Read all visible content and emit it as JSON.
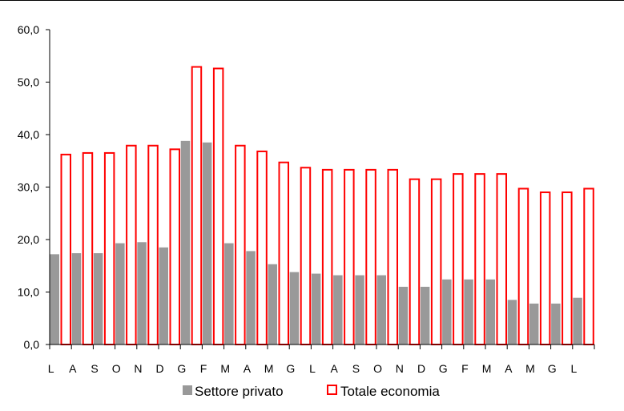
{
  "chart_data": {
    "type": "bar",
    "title": "",
    "xlabel": "",
    "ylabel": "",
    "categories": [
      "L",
      "A",
      "S",
      "O",
      "N",
      "D",
      "G",
      "F",
      "M",
      "A",
      "M",
      "G",
      "L",
      "A",
      "S",
      "O",
      "N",
      "D",
      "G",
      "F",
      "M",
      "A",
      "M",
      "G",
      "L"
    ],
    "ylim": [
      0,
      60
    ],
    "yticks": [
      "0,0",
      "10,0",
      "20,0",
      "30,0",
      "40,0",
      "50,0",
      "60,0"
    ],
    "series": [
      {
        "name": "Settore privato",
        "color": "#999999",
        "style": "filled",
        "values": [
          17.2,
          17.4,
          17.4,
          19.3,
          19.5,
          18.5,
          38.8,
          38.5,
          19.3,
          17.8,
          15.3,
          13.8,
          13.5,
          13.2,
          13.2,
          13.2,
          11.0,
          11.0,
          12.4,
          12.4,
          12.4,
          8.5,
          7.8,
          7.8,
          8.9
        ]
      },
      {
        "name": "Totale economia",
        "color": "#ff0000",
        "style": "outline",
        "values": [
          36.2,
          36.5,
          36.5,
          37.9,
          37.9,
          37.2,
          52.9,
          52.6,
          37.9,
          36.8,
          34.7,
          33.7,
          33.3,
          33.3,
          33.3,
          33.3,
          31.5,
          31.5,
          32.5,
          32.5,
          32.5,
          29.7,
          29.0,
          29.0,
          29.7
        ]
      }
    ],
    "legend": {
      "position": "bottom"
    },
    "grid": false
  }
}
